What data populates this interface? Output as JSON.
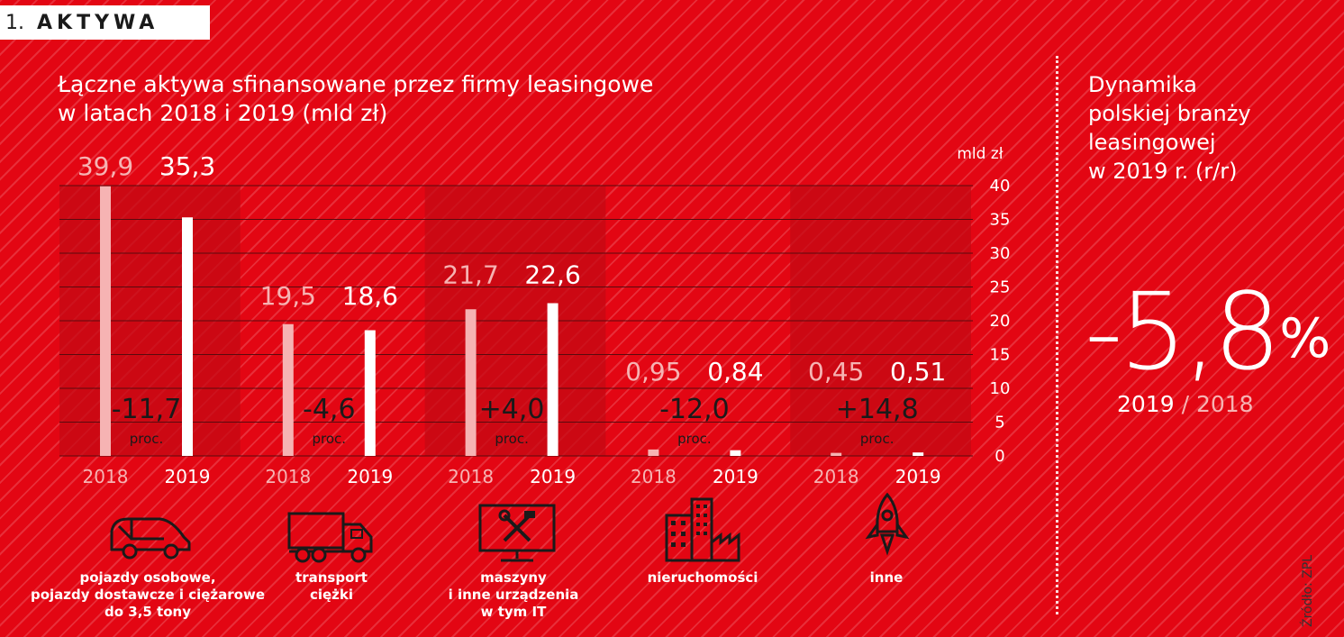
{
  "section": {
    "number": "1.",
    "name": "AKTYWA"
  },
  "title": {
    "line1": "Łączne aktywa sfinansowane przez firmy leasingowe",
    "line2": "w latach 2018 i 2019 (mld zł)"
  },
  "chart_data": {
    "type": "bar",
    "unit_label": "mld zł",
    "ylim": [
      0,
      40
    ],
    "yticks": [
      "0",
      "5",
      "10",
      "15",
      "20",
      "25",
      "30",
      "35",
      "40"
    ],
    "grid": true,
    "categories": [
      "pojazdy osobowe,\npojazdy dostawcze i ciężarowe\ndo 3,5 tony",
      "transport\nciężki",
      "maszyny\ni inne urządzenia\nw tym IT",
      "nieruchomości",
      "inne"
    ],
    "series": [
      {
        "name": "2018",
        "values": [
          39.9,
          19.5,
          21.7,
          0.95,
          0.45
        ],
        "labels": [
          "39,9",
          "19,5",
          "21,7",
          "0,95",
          "0,45"
        ],
        "color": "#f6b3b3"
      },
      {
        "name": "2019",
        "values": [
          35.3,
          18.6,
          22.6,
          0.84,
          0.51
        ],
        "labels": [
          "35,3",
          "18,6",
          "22,6",
          "0,84",
          "0,51"
        ],
        "color": "#ffffff"
      }
    ],
    "changes": [
      "-11,7",
      "-4,6",
      "+4,0",
      "-12,0",
      "+14,8"
    ],
    "change_unit": "proc."
  },
  "categories": [
    {
      "label": "pojazdy osobowe,\npojazdy dostawcze i ciężarowe\ndo 3,5 tony",
      "icon": "car-icon"
    },
    {
      "label": "transport\nciężki",
      "icon": "truck-icon"
    },
    {
      "label": "maszyny\ni inne urządzenia\nw tym IT",
      "icon": "tools-monitor-icon"
    },
    {
      "label": "nieruchomości",
      "icon": "buildings-icon"
    },
    {
      "label": "inne",
      "icon": "rocket-icon"
    }
  ],
  "sidebar": {
    "title_lines": [
      "Dynamika",
      "polskiej branży",
      "leasingowej",
      "w 2019 r. (r/r)"
    ],
    "value": "-5,8",
    "unit": "%",
    "years_current": "2019",
    "years_sep": " / ",
    "years_previous": "2018"
  },
  "source": "Źródło: ZPL",
  "colors": {
    "background": "#e30613",
    "panel": "#c40a14",
    "accent_light": "#f6b3b3",
    "text": "#ffffff"
  }
}
